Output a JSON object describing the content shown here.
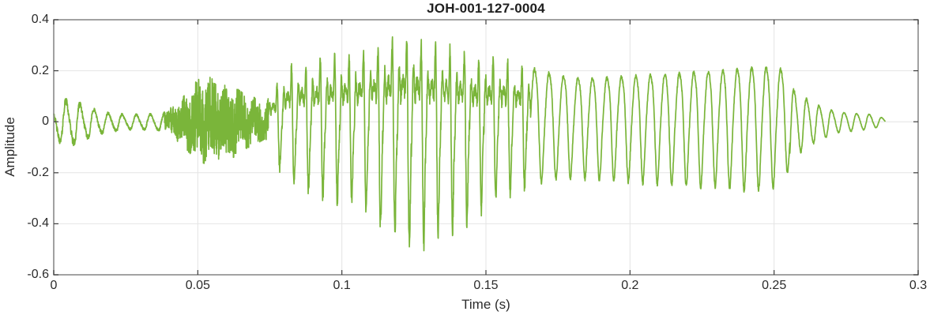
{
  "chart_data": {
    "type": "line",
    "title": "JOH-001-127-0004",
    "xlabel": "Time (s)",
    "ylabel": "Amplitude",
    "xlim": [
      0,
      0.3
    ],
    "ylim": [
      -0.6,
      0.4
    ],
    "xticks": [
      0,
      0.05,
      0.1,
      0.15,
      0.2,
      0.25,
      0.3
    ],
    "xtick_labels": [
      "0",
      "0.05",
      "0.1",
      "0.15",
      "0.2",
      "0.25",
      "0.3"
    ],
    "yticks": [
      -0.6,
      -0.4,
      -0.2,
      0,
      0.2,
      0.4
    ],
    "ytick_labels": [
      "-0.6",
      "-0.4",
      "-0.2",
      "0",
      "0.2",
      "0.4"
    ],
    "grid": true,
    "legend": "none",
    "line_color": "#7ab53a",
    "grid_color": "#e4e4e4",
    "box_color": "#8a8a8a",
    "tick_color": "#3f3f3f",
    "signal": {
      "description": "speech waveform: quiet 200 Hz onset (0-0.038 s), noisy fricative burst peaking +/-0.15 (0.038-0.074 s), loud voiced vowel with glottal pulses peaking +0.32 / -0.50 near t=0.125 s (0.074-0.166 s), smooth quasi-sinusoidal voiced tail +0.2 / -0.26 (0.166-0.255 s), decaying ring-out to silence at 0.289 s",
      "duration_s": 0.2885,
      "f0_hz": 200,
      "noise_seed": 42,
      "pos_env": [
        [
          0,
          0.055
        ],
        [
          0.003,
          0.08
        ],
        [
          0.006,
          0.085
        ],
        [
          0.012,
          0.055
        ],
        [
          0.018,
          0.035
        ],
        [
          0.025,
          0.028
        ],
        [
          0.032,
          0.028
        ],
        [
          0.038,
          0.032
        ],
        [
          0.042,
          0.06
        ],
        [
          0.046,
          0.1
        ],
        [
          0.05,
          0.15
        ],
        [
          0.054,
          0.16
        ],
        [
          0.058,
          0.13
        ],
        [
          0.062,
          0.13
        ],
        [
          0.066,
          0.1
        ],
        [
          0.07,
          0.085
        ],
        [
          0.0735,
          0.06
        ],
        [
          0.0745,
          0.1
        ],
        [
          0.078,
          0.15
        ],
        [
          0.082,
          0.22
        ],
        [
          0.088,
          0.23
        ],
        [
          0.095,
          0.25
        ],
        [
          0.103,
          0.26
        ],
        [
          0.11,
          0.28
        ],
        [
          0.117,
          0.31
        ],
        [
          0.123,
          0.32
        ],
        [
          0.128,
          0.3
        ],
        [
          0.134,
          0.29
        ],
        [
          0.14,
          0.27
        ],
        [
          0.147,
          0.25
        ],
        [
          0.153,
          0.25
        ],
        [
          0.16,
          0.23
        ],
        [
          0.1655,
          0.21
        ],
        [
          0.172,
          0.19
        ],
        [
          0.18,
          0.17
        ],
        [
          0.19,
          0.17
        ],
        [
          0.205,
          0.18
        ],
        [
          0.22,
          0.19
        ],
        [
          0.232,
          0.2
        ],
        [
          0.242,
          0.21
        ],
        [
          0.25,
          0.21
        ],
        [
          0.2535,
          0.2
        ],
        [
          0.257,
          0.12
        ],
        [
          0.261,
          0.09
        ],
        [
          0.266,
          0.06
        ],
        [
          0.271,
          0.04
        ],
        [
          0.278,
          0.032
        ],
        [
          0.284,
          0.028
        ],
        [
          0.2885,
          0.012
        ]
      ],
      "neg_env": [
        [
          0,
          0.06
        ],
        [
          0.003,
          0.085
        ],
        [
          0.006,
          0.09
        ],
        [
          0.012,
          0.06
        ],
        [
          0.018,
          0.04
        ],
        [
          0.025,
          0.03
        ],
        [
          0.032,
          0.03
        ],
        [
          0.038,
          0.035
        ],
        [
          0.042,
          0.06
        ],
        [
          0.046,
          0.1
        ],
        [
          0.05,
          0.14
        ],
        [
          0.054,
          0.155
        ],
        [
          0.058,
          0.14
        ],
        [
          0.062,
          0.13
        ],
        [
          0.066,
          0.1
        ],
        [
          0.07,
          0.08
        ],
        [
          0.0735,
          0.06
        ],
        [
          0.0745,
          0.14
        ],
        [
          0.078,
          0.18
        ],
        [
          0.082,
          0.23
        ],
        [
          0.088,
          0.27
        ],
        [
          0.095,
          0.3
        ],
        [
          0.103,
          0.32
        ],
        [
          0.11,
          0.36
        ],
        [
          0.115,
          0.42
        ],
        [
          0.12,
          0.46
        ],
        [
          0.125,
          0.5
        ],
        [
          0.13,
          0.47
        ],
        [
          0.136,
          0.44
        ],
        [
          0.142,
          0.4
        ],
        [
          0.148,
          0.34
        ],
        [
          0.153,
          0.3
        ],
        [
          0.16,
          0.27
        ],
        [
          0.1655,
          0.25
        ],
        [
          0.172,
          0.23
        ],
        [
          0.18,
          0.22
        ],
        [
          0.19,
          0.23
        ],
        [
          0.205,
          0.24
        ],
        [
          0.22,
          0.25
        ],
        [
          0.232,
          0.26
        ],
        [
          0.242,
          0.27
        ],
        [
          0.25,
          0.26
        ],
        [
          0.2535,
          0.23
        ],
        [
          0.257,
          0.14
        ],
        [
          0.261,
          0.1
        ],
        [
          0.266,
          0.07
        ],
        [
          0.271,
          0.045
        ],
        [
          0.278,
          0.035
        ],
        [
          0.284,
          0.028
        ],
        [
          0.2885,
          0.012
        ]
      ],
      "segments": [
        {
          "t0": 0,
          "t1": 0.0385,
          "type": "tone",
          "f": 205,
          "harmonics": [
            [
              1,
              1.0,
              2.2
            ],
            [
              2,
              0.15,
              4.0
            ]
          ],
          "noise": 0.18
        },
        {
          "t0": 0.0385,
          "t1": 0.0745,
          "type": "noise",
          "f": 205,
          "low_amp": 0.3,
          "smooth": 0.35,
          "gain": 1.35
        },
        {
          "t0": 0.0745,
          "t1": 0.1655,
          "type": "voiced",
          "f": 200,
          "harmonics": [
            [
              1,
              0.5,
              0.2
            ],
            [
              2,
              0.42,
              2.1
            ],
            [
              3,
              0.25,
              4.2
            ],
            [
              4,
              0.14,
              0.9
            ],
            [
              5,
              0.07,
              3.0
            ]
          ],
          "noise": 0.1
        },
        {
          "t0": 0.1655,
          "t1": 0.2555,
          "type": "voiced",
          "f": 199,
          "harmonics": [
            [
              1,
              1.0,
              0.3
            ],
            [
              2,
              0.2,
              2.5
            ],
            [
              3,
              0.06,
              4.9
            ]
          ],
          "noise": 0.04
        },
        {
          "t0": 0.2555,
          "t1": 0.2885,
          "type": "tone",
          "f": 230,
          "harmonics": [
            [
              1,
              1.0,
              0.8
            ],
            [
              2,
              0.12,
              2.2
            ]
          ],
          "noise": 0.06
        }
      ]
    }
  }
}
